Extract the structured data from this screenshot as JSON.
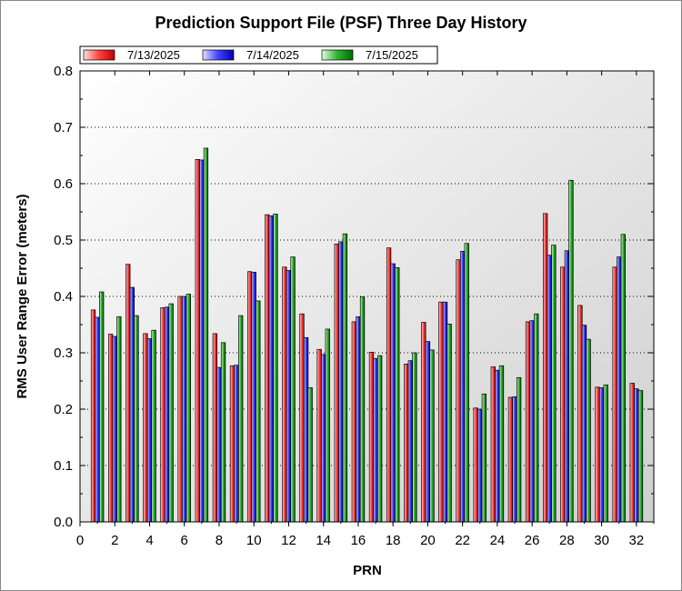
{
  "chart_data": {
    "type": "bar",
    "title": "Prediction Support File (PSF) Three Day History",
    "xlabel": "PRN",
    "ylabel": "RMS User Range Error (meters)",
    "xlim": [
      0,
      33
    ],
    "ylim": [
      0,
      0.8
    ],
    "xticks": [
      "0",
      "2",
      "4",
      "6",
      "8",
      "10",
      "12",
      "14",
      "16",
      "18",
      "20",
      "22",
      "24",
      "26",
      "28",
      "30",
      "32"
    ],
    "yticks": [
      "0.0",
      "0.1",
      "0.2",
      "0.3",
      "0.4",
      "0.5",
      "0.6",
      "0.7",
      "0.8"
    ],
    "grid": true,
    "legend_position": "top-left",
    "categories": [
      1,
      2,
      3,
      4,
      5,
      6,
      7,
      8,
      9,
      10,
      11,
      12,
      13,
      14,
      15,
      16,
      17,
      18,
      19,
      20,
      21,
      22,
      23,
      24,
      25,
      26,
      27,
      28,
      29,
      30,
      31,
      32
    ],
    "series": [
      {
        "name": "7/13/2025",
        "color": "#ff3030",
        "values": [
          0.376,
          0.333,
          0.457,
          0.334,
          0.38,
          0.4,
          0.643,
          0.334,
          0.277,
          0.444,
          0.545,
          0.452,
          0.369,
          0.306,
          0.493,
          0.355,
          0.301,
          0.486,
          0.28,
          0.354,
          0.39,
          0.465,
          0.202,
          0.275,
          0.221,
          0.355,
          0.547,
          0.452,
          0.384,
          0.239,
          0.452,
          0.246
        ]
      },
      {
        "name": "7/14/2025",
        "color": "#3030ff",
        "values": [
          0.363,
          0.329,
          0.416,
          0.325,
          0.381,
          0.4,
          0.642,
          0.274,
          0.278,
          0.443,
          0.543,
          0.446,
          0.327,
          0.297,
          0.497,
          0.364,
          0.29,
          0.458,
          0.286,
          0.32,
          0.39,
          0.48,
          0.2,
          0.269,
          0.222,
          0.357,
          0.473,
          0.481,
          0.349,
          0.238,
          0.47,
          0.236
        ]
      },
      {
        "name": "7/15/2025",
        "color": "#20a020",
        "values": [
          0.408,
          0.364,
          0.366,
          0.34,
          0.387,
          0.404,
          0.663,
          0.318,
          0.366,
          0.392,
          0.546,
          0.47,
          0.238,
          0.342,
          0.511,
          0.399,
          0.295,
          0.451,
          0.3,
          0.305,
          0.351,
          0.494,
          0.227,
          0.277,
          0.256,
          0.369,
          0.491,
          0.606,
          0.324,
          0.243,
          0.51,
          0.233
        ]
      }
    ]
  }
}
